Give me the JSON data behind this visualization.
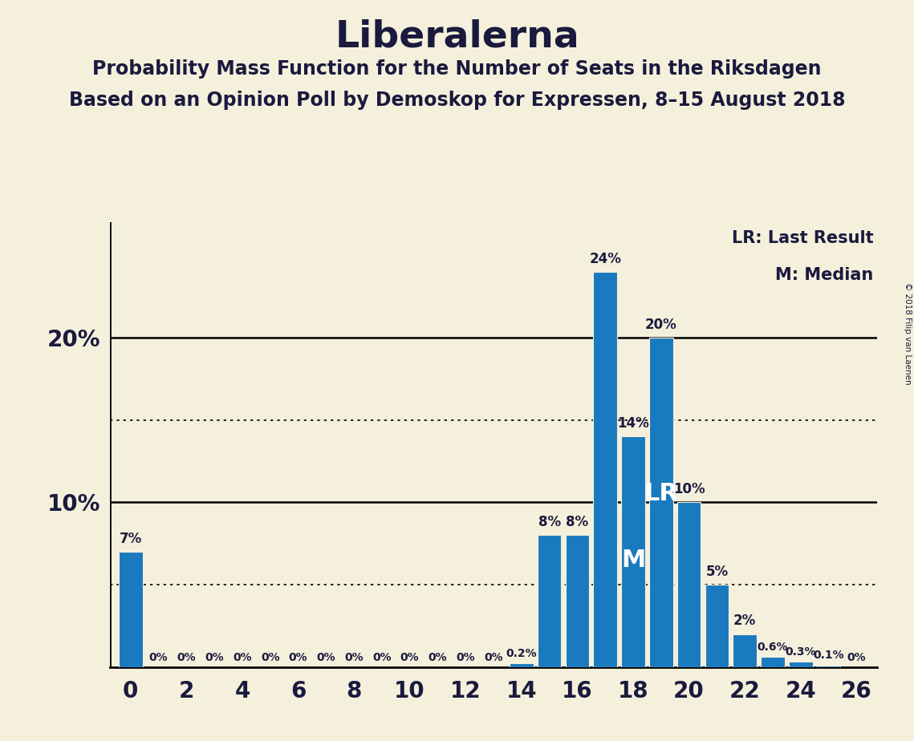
{
  "title": "Liberalerna",
  "subtitle1": "Probability Mass Function for the Number of Seats in the Riksdagen",
  "subtitle2": "Based on an Opinion Poll by Demoskop for Expressen, 8–15 August 2018",
  "copyright": "© 2018 Filip van Laenen",
  "bar_color": "#1a7abf",
  "background_color": "#f5f0dc",
  "text_color": "#1a1a3e",
  "x_values": [
    0,
    1,
    2,
    3,
    4,
    5,
    6,
    7,
    8,
    9,
    10,
    11,
    12,
    13,
    14,
    15,
    16,
    17,
    18,
    19,
    20,
    21,
    22,
    23,
    24,
    25,
    26
  ],
  "y_values": [
    7.0,
    0.0,
    0.0,
    0.0,
    0.0,
    0.0,
    0.0,
    0.0,
    0.0,
    0.0,
    0.0,
    0.0,
    0.0,
    0.0,
    0.2,
    8.0,
    8.0,
    24.0,
    14.0,
    20.0,
    10.0,
    5.0,
    2.0,
    0.6,
    0.3,
    0.1,
    0.0
  ],
  "bar_labels": [
    "7%",
    "0%",
    "0%",
    "0%",
    "0%",
    "0%",
    "0%",
    "0%",
    "0%",
    "0%",
    "0%",
    "0%",
    "0%",
    "0%",
    "0.2%",
    "8%",
    "8%",
    "24%",
    "14%",
    "20%",
    "10%",
    "5%",
    "2%",
    "0.6%",
    "0.3%",
    "0.1%",
    "0%"
  ],
  "x_tick_values": [
    0,
    2,
    4,
    6,
    8,
    10,
    12,
    14,
    16,
    18,
    20,
    22,
    24,
    26
  ],
  "dotted_lines": [
    5.0,
    15.0
  ],
  "solid_lines": [
    10.0,
    20.0
  ],
  "median_x": 18,
  "lr_x": 19,
  "legend_lr": "LR: Last Result",
  "legend_m": "M: Median",
  "ylim": [
    0,
    27
  ],
  "title_fontsize": 34,
  "subtitle_fontsize": 17,
  "axis_label_fontsize": 20,
  "bar_label_fontsize_large": 12,
  "bar_label_fontsize_small": 10,
  "inline_label_fontsize": 22
}
